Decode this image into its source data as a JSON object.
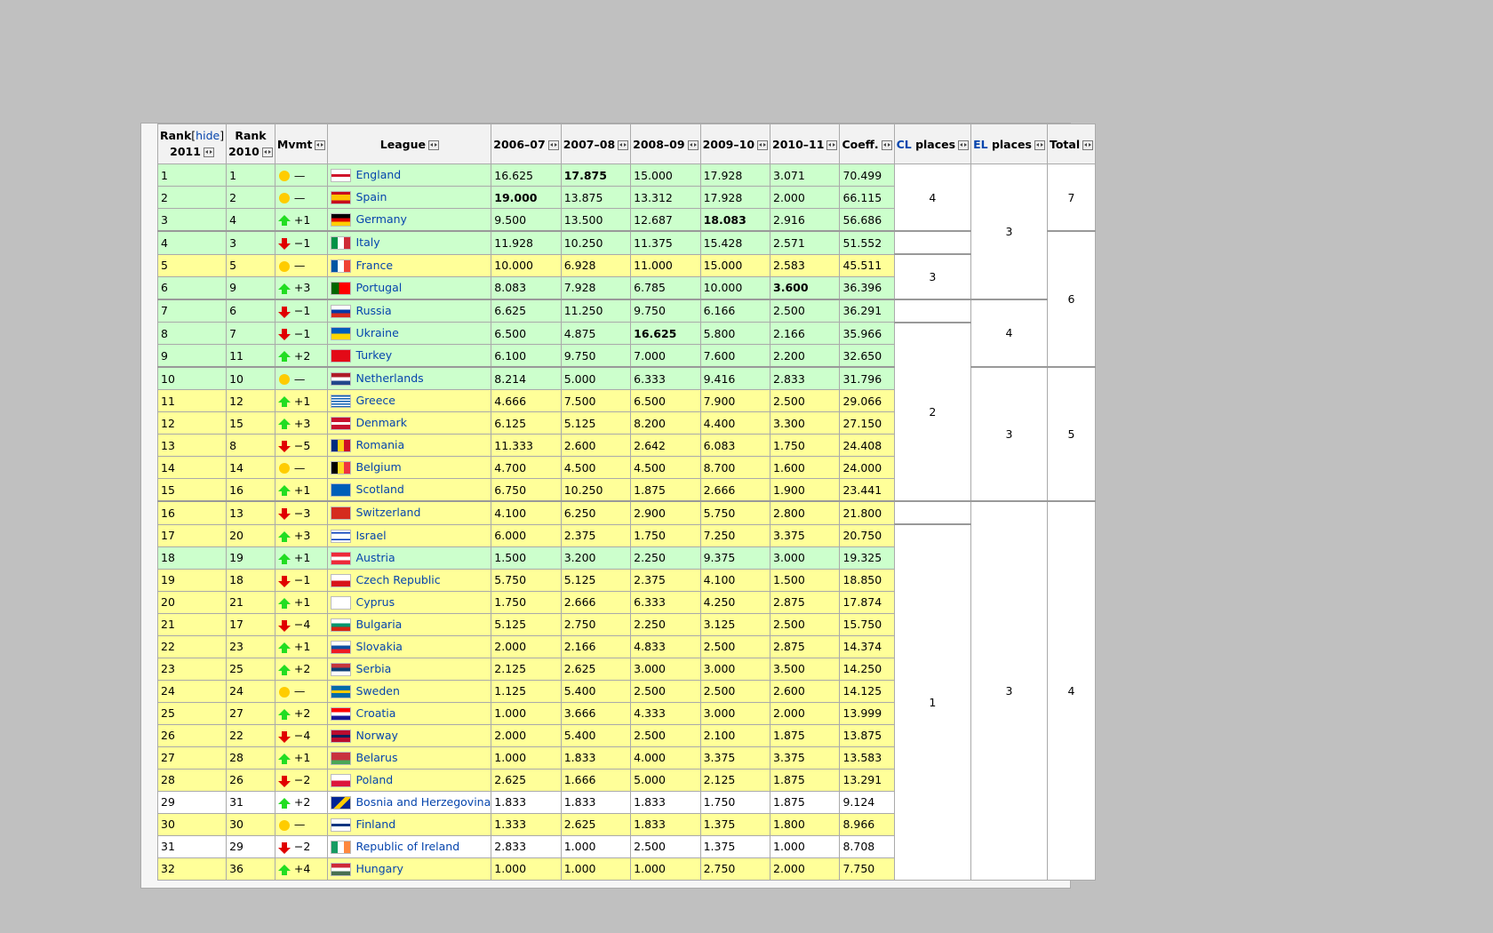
{
  "headers": {
    "rank2011_a": "Rank",
    "hide": "hide",
    "rank2011_b": "2011",
    "rank2010_a": "Rank",
    "rank2010_b": "2010",
    "mvmt": "Mvmt",
    "league": "League",
    "s1": "2006–07",
    "s2": "2007–08",
    "s3": "2008–09",
    "s4": "2009–10",
    "s5": "2010–11",
    "coeff": "Coeff.",
    "cl": "CL",
    "el": "EL",
    "places": "places",
    "total": "Total"
  },
  "rows": [
    {
      "r11": "1",
      "r10": "1",
      "dir": "same",
      "mv": "—",
      "name": "England",
      "flag": "linear-gradient(#fff 40%,#cf142b 40%,#cf142b 60%,#fff 60%)",
      "s1": "16.625",
      "s2": "17.875",
      "s3": "15.000",
      "s4": "17.928",
      "s5": "3.071",
      "coeff": "70.499",
      "bold": [
        "s2"
      ],
      "color": "green",
      "sep": false
    },
    {
      "r11": "2",
      "r10": "2",
      "dir": "same",
      "mv": "—",
      "name": "Spain",
      "flag": "linear-gradient(#c60b1e 25%,#ffc400 25%,#ffc400 75%,#c60b1e 75%)",
      "s1": "19.000",
      "s2": "13.875",
      "s3": "13.312",
      "s4": "17.928",
      "s5": "2.000",
      "coeff": "66.115",
      "bold": [
        "s1"
      ],
      "color": "green",
      "sep": false
    },
    {
      "r11": "3",
      "r10": "4",
      "dir": "up",
      "mv": "+1",
      "name": "Germany",
      "flag": "linear-gradient(#000 33%,#dd0000 33%,#dd0000 66%,#ffce00 66%)",
      "s1": "9.500",
      "s2": "13.500",
      "s3": "12.687",
      "s4": "18.083",
      "s5": "2.916",
      "coeff": "56.686",
      "bold": [
        "s4"
      ],
      "color": "green",
      "sep": false
    },
    {
      "r11": "4",
      "r10": "3",
      "dir": "down",
      "mv": "−1",
      "name": "Italy",
      "flag": "linear-gradient(90deg,#009246 33%,#fff 33%,#fff 66%,#ce2b37 66%)",
      "s1": "11.928",
      "s2": "10.250",
      "s3": "11.375",
      "s4": "15.428",
      "s5": "2.571",
      "coeff": "51.552",
      "bold": [],
      "color": "green",
      "sep": true
    },
    {
      "r11": "5",
      "r10": "5",
      "dir": "same",
      "mv": "—",
      "name": "France",
      "flag": "linear-gradient(90deg,#0055a4 33%,#fff 33%,#fff 66%,#ef4135 66%)",
      "s1": "10.000",
      "s2": "6.928",
      "s3": "11.000",
      "s4": "15.000",
      "s5": "2.583",
      "coeff": "45.511",
      "bold": [],
      "color": "yellow",
      "sep": false
    },
    {
      "r11": "6",
      "r10": "9",
      "dir": "up",
      "mv": "+3",
      "name": "Portugal",
      "flag": "linear-gradient(90deg,#006600 40%,#ff0000 40%)",
      "s1": "8.083",
      "s2": "7.928",
      "s3": "6.785",
      "s4": "10.000",
      "s5": "3.600",
      "coeff": "36.396",
      "bold": [
        "s5"
      ],
      "color": "green",
      "sep": false
    },
    {
      "r11": "7",
      "r10": "6",
      "dir": "down",
      "mv": "−1",
      "name": "Russia",
      "flag": "linear-gradient(#fff 33%,#0039a6 33%,#0039a6 66%,#d52b1e 66%)",
      "s1": "6.625",
      "s2": "11.250",
      "s3": "9.750",
      "s4": "6.166",
      "s5": "2.500",
      "coeff": "36.291",
      "bold": [],
      "color": "green",
      "sep": true
    },
    {
      "r11": "8",
      "r10": "7",
      "dir": "down",
      "mv": "−1",
      "name": "Ukraine",
      "flag": "linear-gradient(#005bbb 50%,#ffd500 50%)",
      "s1": "6.500",
      "s2": "4.875",
      "s3": "16.625",
      "s4": "5.800",
      "s5": "2.166",
      "coeff": "35.966",
      "bold": [
        "s3"
      ],
      "color": "green",
      "sep": false
    },
    {
      "r11": "9",
      "r10": "11",
      "dir": "up",
      "mv": "+2",
      "name": "Turkey",
      "flag": "linear-gradient(#e30a17,#e30a17)",
      "s1": "6.100",
      "s2": "9.750",
      "s3": "7.000",
      "s4": "7.600",
      "s5": "2.200",
      "coeff": "32.650",
      "bold": [],
      "color": "green",
      "sep": false
    },
    {
      "r11": "10",
      "r10": "10",
      "dir": "same",
      "mv": "—",
      "name": "Netherlands",
      "flag": "linear-gradient(#ae1c28 33%,#fff 33%,#fff 66%,#21468b 66%)",
      "s1": "8.214",
      "s2": "5.000",
      "s3": "6.333",
      "s4": "9.416",
      "s5": "2.833",
      "coeff": "31.796",
      "bold": [],
      "color": "green",
      "sep": true
    },
    {
      "r11": "11",
      "r10": "12",
      "dir": "up",
      "mv": "+1",
      "name": "Greece",
      "flag": "repeating-linear-gradient(#0d5eaf 0 1.5px,#fff 1.5px 3px)",
      "s1": "4.666",
      "s2": "7.500",
      "s3": "6.500",
      "s4": "7.900",
      "s5": "2.500",
      "coeff": "29.066",
      "bold": [],
      "color": "yellow",
      "sep": false
    },
    {
      "r11": "12",
      "r10": "15",
      "dir": "up",
      "mv": "+3",
      "name": "Denmark",
      "flag": "linear-gradient(#c8102e 40%,#fff 40%,#fff 60%,#c8102e 60%)",
      "s1": "6.125",
      "s2": "5.125",
      "s3": "8.200",
      "s4": "4.400",
      "s5": "3.300",
      "coeff": "27.150",
      "bold": [],
      "color": "yellow",
      "sep": false
    },
    {
      "r11": "13",
      "r10": "8",
      "dir": "down",
      "mv": "−5",
      "name": "Romania",
      "flag": "linear-gradient(90deg,#002b7f 33%,#fcd116 33%,#fcd116 66%,#ce1126 66%)",
      "s1": "11.333",
      "s2": "2.600",
      "s3": "2.642",
      "s4": "6.083",
      "s5": "1.750",
      "coeff": "24.408",
      "bold": [],
      "color": "yellow",
      "sep": false
    },
    {
      "r11": "14",
      "r10": "14",
      "dir": "same",
      "mv": "—",
      "name": "Belgium",
      "flag": "linear-gradient(90deg,#000 33%,#fdda24 33%,#fdda24 66%,#ef3340 66%)",
      "s1": "4.700",
      "s2": "4.500",
      "s3": "4.500",
      "s4": "8.700",
      "s5": "1.600",
      "coeff": "24.000",
      "bold": [],
      "color": "yellow",
      "sep": false
    },
    {
      "r11": "15",
      "r10": "16",
      "dir": "up",
      "mv": "+1",
      "name": "Scotland",
      "flag": "linear-gradient(#005eb8,#005eb8)",
      "s1": "6.750",
      "s2": "10.250",
      "s3": "1.875",
      "s4": "2.666",
      "s5": "1.900",
      "coeff": "23.441",
      "bold": [],
      "color": "yellow",
      "sep": false
    },
    {
      "r11": "16",
      "r10": "13",
      "dir": "down",
      "mv": "−3",
      "name": "Switzerland",
      "flag": "linear-gradient(#d52b1e,#d52b1e)",
      "s1": "4.100",
      "s2": "6.250",
      "s3": "2.900",
      "s4": "5.750",
      "s5": "2.800",
      "coeff": "21.800",
      "bold": [],
      "color": "yellow",
      "sep": true
    },
    {
      "r11": "17",
      "r10": "20",
      "dir": "up",
      "mv": "+3",
      "name": "Israel",
      "flag": "linear-gradient(#fff 15%,#0038b8 15%,#0038b8 28%,#fff 28%,#fff 72%,#0038b8 72%,#0038b8 85%,#fff 85%)",
      "s1": "6.000",
      "s2": "2.375",
      "s3": "1.750",
      "s4": "7.250",
      "s5": "3.375",
      "coeff": "20.750",
      "bold": [],
      "color": "yellow",
      "sep": false
    },
    {
      "r11": "18",
      "r10": "19",
      "dir": "up",
      "mv": "+1",
      "name": "Austria",
      "flag": "linear-gradient(#ed2939 33%,#fff 33%,#fff 66%,#ed2939 66%)",
      "s1": "1.500",
      "s2": "3.200",
      "s3": "2.250",
      "s4": "9.375",
      "s5": "3.000",
      "coeff": "19.325",
      "bold": [],
      "color": "green",
      "sep": false
    },
    {
      "r11": "19",
      "r10": "18",
      "dir": "down",
      "mv": "−1",
      "name": "Czech Republic",
      "flag": "linear-gradient(#fff 50%,#d7141a 50%)",
      "s1": "5.750",
      "s2": "5.125",
      "s3": "2.375",
      "s4": "4.100",
      "s5": "1.500",
      "coeff": "18.850",
      "bold": [],
      "color": "yellow",
      "sep": false
    },
    {
      "r11": "20",
      "r10": "21",
      "dir": "up",
      "mv": "+1",
      "name": "Cyprus",
      "flag": "linear-gradient(#fff,#fff)",
      "s1": "1.750",
      "s2": "2.666",
      "s3": "6.333",
      "s4": "4.250",
      "s5": "2.875",
      "coeff": "17.874",
      "bold": [],
      "color": "yellow",
      "sep": false
    },
    {
      "r11": "21",
      "r10": "17",
      "dir": "down",
      "mv": "−4",
      "name": "Bulgaria",
      "flag": "linear-gradient(#fff 33%,#00966e 33%,#00966e 66%,#d62612 66%)",
      "s1": "5.125",
      "s2": "2.750",
      "s3": "2.250",
      "s4": "3.125",
      "s5": "2.500",
      "coeff": "15.750",
      "bold": [],
      "color": "yellow",
      "sep": false
    },
    {
      "r11": "22",
      "r10": "23",
      "dir": "up",
      "mv": "+1",
      "name": "Slovakia",
      "flag": "linear-gradient(#fff 33%,#0b4ea2 33%,#0b4ea2 66%,#ee1c25 66%)",
      "s1": "2.000",
      "s2": "2.166",
      "s3": "4.833",
      "s4": "2.500",
      "s5": "2.875",
      "coeff": "14.374",
      "bold": [],
      "color": "yellow",
      "sep": false
    },
    {
      "r11": "23",
      "r10": "25",
      "dir": "up",
      "mv": "+2",
      "name": "Serbia",
      "flag": "linear-gradient(#c6363c 33%,#0c4076 33%,#0c4076 66%,#fff 66%)",
      "s1": "2.125",
      "s2": "2.625",
      "s3": "3.000",
      "s4": "3.000",
      "s5": "3.500",
      "coeff": "14.250",
      "bold": [],
      "color": "yellow",
      "sep": false
    },
    {
      "r11": "24",
      "r10": "24",
      "dir": "same",
      "mv": "—",
      "name": "Sweden",
      "flag": "linear-gradient(#006aa7 40%,#fecc00 40%,#fecc00 60%,#006aa7 60%)",
      "s1": "1.125",
      "s2": "5.400",
      "s3": "2.500",
      "s4": "2.500",
      "s5": "2.600",
      "coeff": "14.125",
      "bold": [],
      "color": "yellow",
      "sep": false
    },
    {
      "r11": "25",
      "r10": "27",
      "dir": "up",
      "mv": "+2",
      "name": "Croatia",
      "flag": "linear-gradient(#ff0000 33%,#fff 33%,#fff 66%,#171796 66%)",
      "s1": "1.000",
      "s2": "3.666",
      "s3": "4.333",
      "s4": "3.000",
      "s5": "2.000",
      "coeff": "13.999",
      "bold": [],
      "color": "yellow",
      "sep": false
    },
    {
      "r11": "26",
      "r10": "22",
      "dir": "down",
      "mv": "−4",
      "name": "Norway",
      "flag": "linear-gradient(#ba0c2f 38%,#00205b 38%,#00205b 62%,#ba0c2f 62%)",
      "s1": "2.000",
      "s2": "5.400",
      "s3": "2.500",
      "s4": "2.100",
      "s5": "1.875",
      "coeff": "13.875",
      "bold": [],
      "color": "yellow",
      "sep": false
    },
    {
      "r11": "27",
      "r10": "28",
      "dir": "up",
      "mv": "+1",
      "name": "Belarus",
      "flag": "linear-gradient(#c8313e 66%,#4aa657 66%)",
      "s1": "1.000",
      "s2": "1.833",
      "s3": "4.000",
      "s4": "3.375",
      "s5": "3.375",
      "coeff": "13.583",
      "bold": [],
      "color": "yellow",
      "sep": false
    },
    {
      "r11": "28",
      "r10": "26",
      "dir": "down",
      "mv": "−2",
      "name": "Poland",
      "flag": "linear-gradient(#fff 50%,#dc143c 50%)",
      "s1": "2.625",
      "s2": "1.666",
      "s3": "5.000",
      "s4": "2.125",
      "s5": "1.875",
      "coeff": "13.291",
      "bold": [],
      "color": "yellow",
      "sep": false
    },
    {
      "r11": "29",
      "r10": "31",
      "dir": "up",
      "mv": "+2",
      "name": "Bosnia and Herzegovina",
      "flag": "linear-gradient(135deg,#002395 45%,#fecb00 45%,#fecb00 65%,#002395 65%)",
      "s1": "1.833",
      "s2": "1.833",
      "s3": "1.833",
      "s4": "1.750",
      "s5": "1.875",
      "coeff": "9.124",
      "bold": [],
      "color": "white",
      "sep": false
    },
    {
      "r11": "30",
      "r10": "30",
      "dir": "same",
      "mv": "—",
      "name": "Finland",
      "flag": "linear-gradient(#fff 38%,#003580 38%,#003580 62%,#fff 62%)",
      "s1": "1.333",
      "s2": "2.625",
      "s3": "1.833",
      "s4": "1.375",
      "s5": "1.800",
      "coeff": "8.966",
      "bold": [],
      "color": "yellow",
      "sep": false
    },
    {
      "r11": "31",
      "r10": "29",
      "dir": "down",
      "mv": "−2",
      "name": "Republic of Ireland",
      "flag": "linear-gradient(90deg,#169b62 33%,#fff 33%,#fff 66%,#ff883e 66%)",
      "s1": "2.833",
      "s2": "1.000",
      "s3": "2.500",
      "s4": "1.375",
      "s5": "1.000",
      "coeff": "8.708",
      "bold": [],
      "color": "white",
      "sep": false
    },
    {
      "r11": "32",
      "r10": "36",
      "dir": "up",
      "mv": "+4",
      "name": "Hungary",
      "flag": "linear-gradient(#ce2939 33%,#fff 33%,#fff 66%,#477050 66%)",
      "s1": "1.000",
      "s2": "1.000",
      "s3": "1.000",
      "s4": "2.750",
      "s5": "2.000",
      "coeff": "7.750",
      "bold": [],
      "color": "yellow",
      "sep": false
    }
  ],
  "merged": {
    "cl": [
      {
        "start": 0,
        "span": 3,
        "text": "4"
      },
      {
        "start": 3,
        "span": 1,
        "text": ""
      },
      {
        "start": 4,
        "span": 2,
        "text": "3"
      },
      {
        "start": 6,
        "span": 1,
        "text": ""
      },
      {
        "start": 7,
        "span": 8,
        "text": "2"
      },
      {
        "start": 15,
        "span": 1,
        "text": ""
      },
      {
        "start": 16,
        "span": 16,
        "text": "1"
      }
    ],
    "el": [
      {
        "start": 0,
        "span": 6,
        "text": "3"
      },
      {
        "start": 6,
        "span": 3,
        "text": "4"
      },
      {
        "start": 9,
        "span": 6,
        "text": "3"
      },
      {
        "start": 15,
        "span": 17,
        "text": "3"
      }
    ],
    "total": [
      {
        "start": 0,
        "span": 3,
        "text": "7"
      },
      {
        "start": 3,
        "span": 6,
        "text": "6"
      },
      {
        "start": 9,
        "span": 6,
        "text": "5"
      },
      {
        "start": 15,
        "span": 17,
        "text": "4"
      }
    ]
  }
}
